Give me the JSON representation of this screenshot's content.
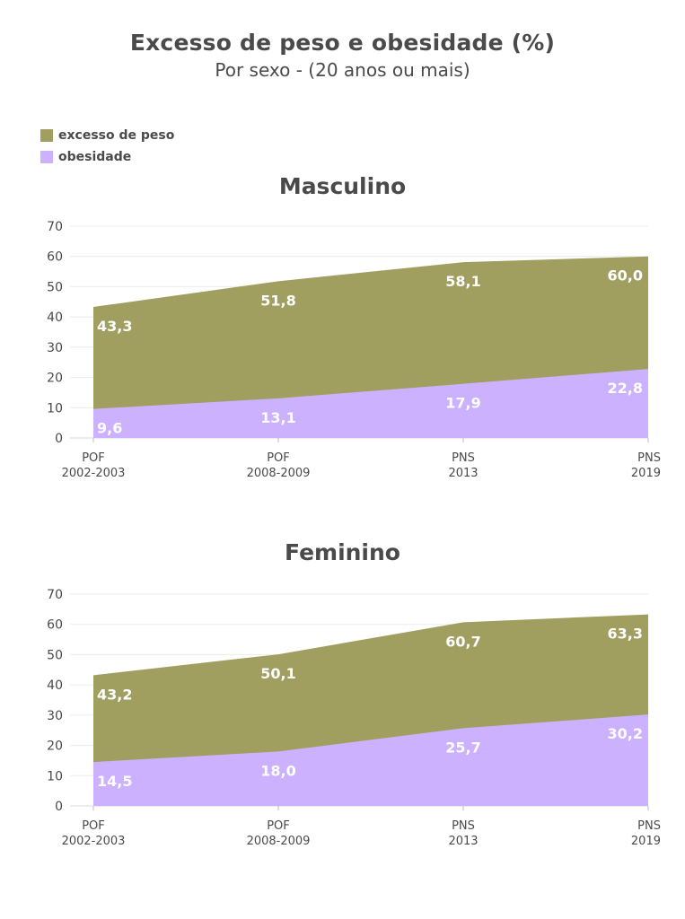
{
  "title": "Excesso de peso e obesidade (%)",
  "subtitle": "Por sexo - (20 anos ou mais)",
  "legend": [
    {
      "label": "excesso de peso",
      "color": "#a09f60"
    },
    {
      "label": "obesidade",
      "color": "#cbb1ff"
    }
  ],
  "chart_data": [
    {
      "type": "area",
      "title": "Masculino",
      "categories": [
        [
          "POF",
          "2002-2003"
        ],
        [
          "POF",
          "2008-2009"
        ],
        [
          "PNS",
          "2013"
        ],
        [
          "PNS",
          "2019"
        ]
      ],
      "series": [
        {
          "name": "excesso de peso",
          "values": [
            43.3,
            51.8,
            58.1,
            60.0
          ],
          "labels": [
            "43,3",
            "51,8",
            "58,1",
            "60,0"
          ],
          "color": "#a09f60"
        },
        {
          "name": "obesidade",
          "values": [
            9.6,
            13.1,
            17.9,
            22.8
          ],
          "labels": [
            "9,6",
            "13,1",
            "17,9",
            "22,8"
          ],
          "color": "#cbb1ff"
        }
      ],
      "yticks": [
        0,
        10,
        20,
        30,
        40,
        50,
        60,
        70
      ],
      "ylim": [
        0,
        70
      ],
      "grid": true
    },
    {
      "type": "area",
      "title": "Feminino",
      "categories": [
        [
          "POF",
          "2002-2003"
        ],
        [
          "POF",
          "2008-2009"
        ],
        [
          "PNS",
          "2013"
        ],
        [
          "PNS",
          "2019"
        ]
      ],
      "series": [
        {
          "name": "excesso de peso",
          "values": [
            43.2,
            50.1,
            60.7,
            63.3
          ],
          "labels": [
            "43,2",
            "50,1",
            "60,7",
            "63,3"
          ],
          "color": "#a09f60"
        },
        {
          "name": "obesidade",
          "values": [
            14.5,
            18.0,
            25.7,
            30.2
          ],
          "labels": [
            "14,5",
            "18,0",
            "25,7",
            "30,2"
          ],
          "color": "#cbb1ff"
        }
      ],
      "yticks": [
        0,
        10,
        20,
        30,
        40,
        50,
        60,
        70
      ],
      "ylim": [
        0,
        70
      ],
      "grid": true
    }
  ]
}
